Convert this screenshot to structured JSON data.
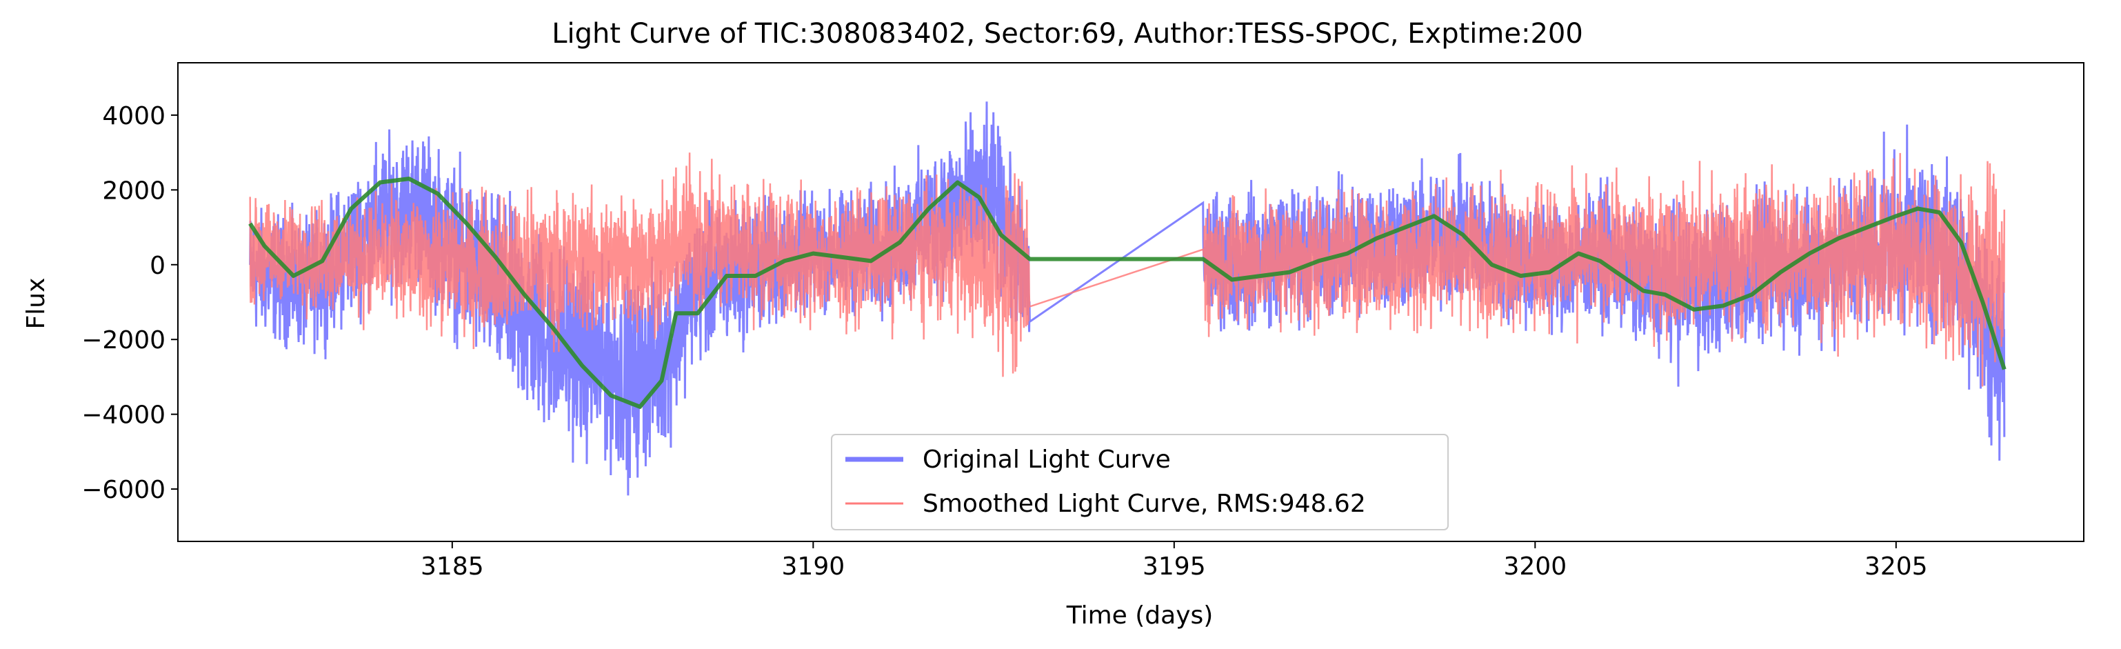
{
  "chart_data": {
    "type": "line",
    "title": "Light Curve of TIC:308083402, Sector:69, Author:TESS-SPOC, Exptime:200",
    "xlabel": "Time (days)",
    "ylabel": "Flux",
    "xlim": [
      3181.2,
      3207.6
    ],
    "ylim": [
      -7400,
      5400
    ],
    "xticks": [
      3185,
      3190,
      3195,
      3200,
      3205
    ],
    "yticks": [
      -6000,
      -4000,
      -2000,
      0,
      2000,
      4000
    ],
    "xtick_labels": [
      "3185",
      "3190",
      "3195",
      "3200",
      "3205"
    ],
    "ytick_labels": [
      "−6000",
      "−4000",
      "−2000",
      "0",
      "2000",
      "4000"
    ],
    "grid": false,
    "legend_position": "lower center",
    "legend": [
      {
        "label": "Original Light Curve",
        "color": "#7b7bff"
      },
      {
        "label": "Smoothed Light Curve, RMS:948.62",
        "color": "#ff7b7b"
      }
    ],
    "segments": [
      {
        "start": 3182.2,
        "end": 3193.0
      },
      {
        "start": 3195.4,
        "end": 3206.5
      }
    ],
    "series": [
      {
        "name": "Original Light Curve",
        "color": "#7b7bff",
        "approx_envelope": true,
        "x": [
          3182.2,
          3183.0,
          3184.0,
          3184.5,
          3185.0,
          3186.0,
          3187.0,
          3187.5,
          3188.0,
          3188.3,
          3189.0,
          3190.0,
          3191.0,
          3192.0,
          3192.5,
          3193.0,
          3195.4,
          3196.0,
          3197.0,
          3198.0,
          3199.0,
          3200.0,
          3201.0,
          3201.5,
          3202.0,
          3203.0,
          3204.0,
          3205.0,
          3205.5,
          3206.0,
          3206.5
        ],
        "upper": [
          2200,
          1800,
          4000,
          4500,
          3600,
          2300,
          900,
          600,
          1000,
          2000,
          2500,
          2400,
          2800,
          4600,
          4800,
          2000,
          2500,
          2700,
          2900,
          3200,
          3300,
          2500,
          2600,
          2000,
          2400,
          2500,
          3000,
          3800,
          4000,
          3000,
          1000
        ],
        "lower": [
          -2500,
          -3000,
          -1600,
          -1200,
          -2600,
          -5200,
          -6200,
          -6800,
          -5600,
          -3500,
          -2800,
          -1800,
          -2000,
          -1400,
          -1200,
          -3500,
          -2200,
          -2400,
          -2200,
          -2000,
          -1800,
          -2500,
          -2200,
          -3000,
          -3500,
          -3000,
          -2800,
          -2500,
          -2600,
          -3800,
          -6800
        ]
      },
      {
        "name": "Smoothed Light Curve, RMS:948.62",
        "color": "#ff7b7b",
        "approx_envelope": true,
        "x": [
          3182.2,
          3184.0,
          3186.0,
          3188.0,
          3188.3,
          3190.0,
          3192.0,
          3193.0,
          3195.4,
          3198.0,
          3201.0,
          3201.8,
          3203.0,
          3205.0,
          3206.0,
          3206.5
        ],
        "upper": [
          2200,
          2400,
          2600,
          2800,
          3600,
          2500,
          2900,
          3200,
          2500,
          2800,
          2800,
          3000,
          3200,
          3200,
          3700,
          3500
        ],
        "lower": [
          -1500,
          -2000,
          -2800,
          -2400,
          -2000,
          -2200,
          -2100,
          -4300,
          -2300,
          -2400,
          -2300,
          -2500,
          -2600,
          -2700,
          -4000,
          -4000
        ]
      },
      {
        "name": "",
        "color": "#2e8b2e",
        "x": [
          3182.2,
          3182.4,
          3182.8,
          3183.2,
          3183.6,
          3184.0,
          3184.4,
          3184.8,
          3185.2,
          3185.6,
          3186.0,
          3186.4,
          3186.8,
          3187.2,
          3187.6,
          3187.9,
          3188.1,
          3188.4,
          3188.8,
          3189.2,
          3189.6,
          3190.0,
          3190.4,
          3190.8,
          3191.2,
          3191.6,
          3192.0,
          3192.3,
          3192.6,
          3193.0,
          3195.4,
          3195.8,
          3196.2,
          3196.6,
          3197.0,
          3197.4,
          3197.8,
          3198.2,
          3198.6,
          3199.0,
          3199.4,
          3199.8,
          3200.2,
          3200.6,
          3200.9,
          3201.2,
          3201.5,
          3201.8,
          3202.2,
          3202.6,
          3203.0,
          3203.4,
          3203.8,
          3204.2,
          3204.6,
          3205.0,
          3205.3,
          3205.6,
          3205.9,
          3206.2,
          3206.5
        ],
        "values": [
          1100,
          500,
          -300,
          100,
          1500,
          2200,
          2300,
          1900,
          1100,
          200,
          -800,
          -1700,
          -2700,
          -3500,
          -3800,
          -3100,
          -1300,
          -1300,
          -300,
          -300,
          100,
          300,
          200,
          100,
          600,
          1500,
          2200,
          1800,
          800,
          150,
          150,
          -400,
          -300,
          -200,
          100,
          300,
          700,
          1000,
          1300,
          800,
          0,
          -300,
          -200,
          300,
          100,
          -300,
          -700,
          -800,
          -1200,
          -1100,
          -800,
          -200,
          300,
          700,
          1000,
          1300,
          1500,
          1400,
          600,
          -1000,
          -2800
        ]
      }
    ]
  }
}
